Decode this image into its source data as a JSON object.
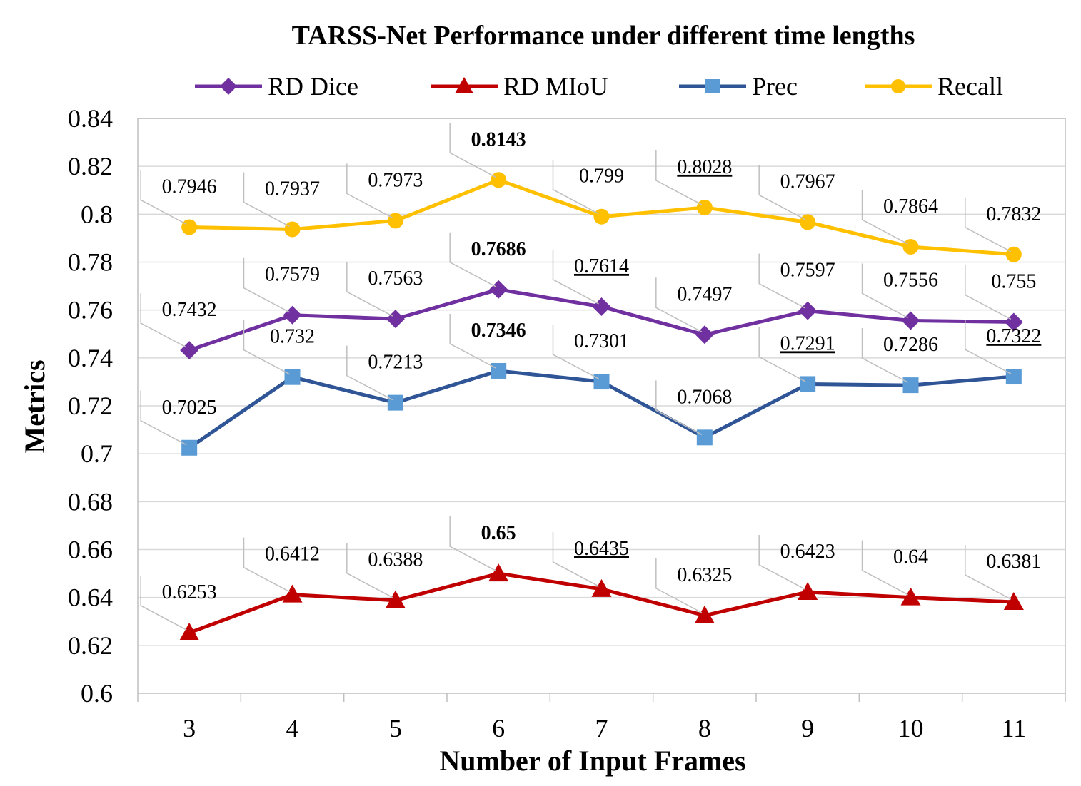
{
  "chart_data": {
    "type": "line",
    "title": "TARSS-Net Performance under different time lengths",
    "xlabel": "Number of Input Frames",
    "ylabel": "Metrics",
    "categories": [
      "3",
      "4",
      "5",
      "6",
      "7",
      "8",
      "9",
      "10",
      "11"
    ],
    "ylim": [
      0.6,
      0.84
    ],
    "yticks": [
      "0.6",
      "0.62",
      "0.64",
      "0.66",
      "0.68",
      "0.7",
      "0.72",
      "0.74",
      "0.76",
      "0.78",
      "0.8",
      "0.82",
      "0.84"
    ],
    "grid": true,
    "legend_position": "top",
    "series": [
      {
        "name": "RD Dice",
        "color": "#7030A0",
        "marker": "diamond",
        "values": [
          0.7432,
          0.7579,
          0.7563,
          0.7686,
          0.7614,
          0.7497,
          0.7597,
          0.7556,
          0.755
        ],
        "labels": [
          "0.7432",
          "0.7579",
          "0.7563",
          "0.7686",
          "0.7614",
          "0.7497",
          "0.7597",
          "0.7556",
          "0.755"
        ],
        "bold_index": 3,
        "underline_index": 4
      },
      {
        "name": "RD MIoU",
        "color": "#C00000",
        "marker": "triangle",
        "values": [
          0.6253,
          0.6412,
          0.6388,
          0.65,
          0.6435,
          0.6325,
          0.6423,
          0.64,
          0.6381
        ],
        "labels": [
          "0.6253",
          "0.6412",
          "0.6388",
          "0.65",
          "0.6435",
          "0.6325",
          "0.6423",
          "0.64",
          "0.6381"
        ],
        "bold_index": 3,
        "underline_index": 4
      },
      {
        "name": "Prec",
        "color": "#2F5597",
        "marker_color": "#5B9BD5",
        "marker": "square",
        "values": [
          0.7025,
          0.732,
          0.7213,
          0.7346,
          0.7301,
          0.7068,
          0.7291,
          0.7286,
          0.7322
        ],
        "labels": [
          "0.7025",
          "0.732",
          "0.7213",
          "0.7346",
          "0.7301",
          "0.7068",
          "0.7291",
          "0.7286",
          "0.7322"
        ],
        "bold_index": 3,
        "underline_indices": [
          6,
          8
        ]
      },
      {
        "name": "Recall",
        "color": "#FFC000",
        "marker": "circle",
        "values": [
          0.7946,
          0.7937,
          0.7973,
          0.8143,
          0.799,
          0.8028,
          0.7967,
          0.7864,
          0.7832
        ],
        "labels": [
          "0.7946",
          "0.7937",
          "0.7973",
          "0.8143",
          "0.799",
          "0.8028",
          "0.7967",
          "0.7864",
          "0.7832"
        ],
        "bold_index": 3,
        "underline_index": 5
      }
    ]
  }
}
